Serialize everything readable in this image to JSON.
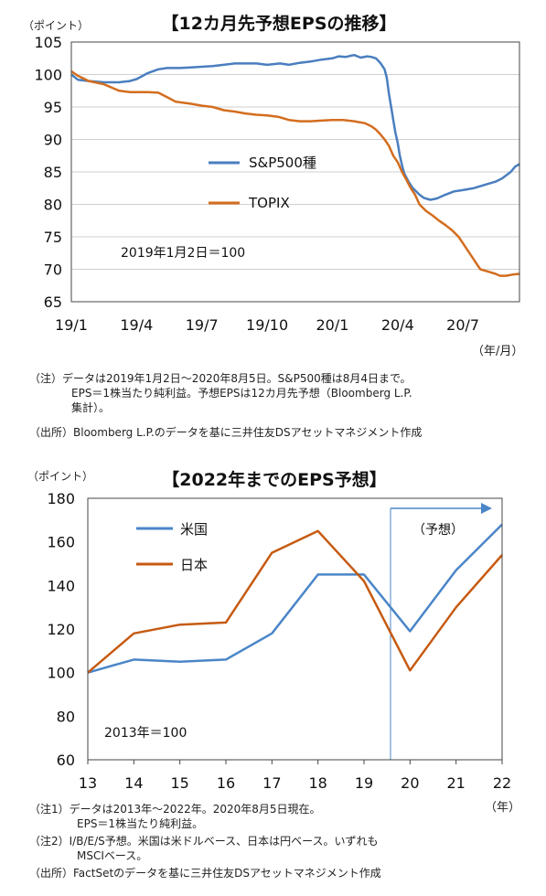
{
  "chart_data": [
    {
      "type": "line",
      "title": "【12カ月先予想EPSの推移】",
      "ylabel": "（ポイント）",
      "xlabel": "（年/月）",
      "ylim": [
        65,
        105
      ],
      "yticks": [
        "65",
        "70",
        "75",
        "80",
        "85",
        "90",
        "95",
        "100",
        "105"
      ],
      "xticks": [
        "19/1",
        "19/4",
        "19/7",
        "19/10",
        "20/1",
        "20/4",
        "20/7"
      ],
      "grid": true,
      "legend_position": "middle-right",
      "base_note": "2019年1月2日＝100",
      "series": [
        {
          "name": "S&P500種",
          "color": "#4a7ebf",
          "x": [
            0,
            0.3,
            0.8,
            1.5,
            2.2,
            2.7,
            3.0,
            3.5,
            4.0,
            4.4,
            5.0,
            5.5,
            6.0,
            6.5,
            7.0,
            7.5,
            8.0,
            8.5,
            9.0,
            9.3,
            9.6,
            10.0,
            10.5,
            11.0,
            11.5,
            12.0,
            12.3,
            12.6,
            13.0,
            13.3,
            13.6,
            13.8,
            14.0,
            14.2,
            14.4,
            14.5,
            14.6,
            14.7,
            14.8,
            14.9,
            15.0,
            15.1,
            15.2,
            15.3,
            15.5,
            15.7,
            16.0,
            16.2,
            16.5,
            16.8,
            17.2,
            17.6,
            18.0,
            18.5,
            19.0,
            19.5,
            19.8,
            20.0,
            20.2,
            20.4,
            20.6
          ],
          "values": [
            100.0,
            99.2,
            99.0,
            98.8,
            98.8,
            99.0,
            99.3,
            100.2,
            100.8,
            101.0,
            101.0,
            101.1,
            101.2,
            101.3,
            101.5,
            101.7,
            101.7,
            101.7,
            101.5,
            101.6,
            101.7,
            101.5,
            101.8,
            102.0,
            102.3,
            102.5,
            102.8,
            102.7,
            103.0,
            102.6,
            102.8,
            102.7,
            102.5,
            101.8,
            100.8,
            99.5,
            97.0,
            95.0,
            93.0,
            91.0,
            89.5,
            87.5,
            86.0,
            84.8,
            83.5,
            82.5,
            81.5,
            81.0,
            80.7,
            80.9,
            81.5,
            82.0,
            82.2,
            82.5,
            83.0,
            83.5,
            84.0,
            84.5,
            85.0,
            85.8,
            86.2
          ]
        },
        {
          "name": "TOPIX",
          "color": "#d36d1f",
          "x": [
            0,
            0.3,
            0.8,
            1.5,
            2.2,
            2.7,
            3.0,
            3.5,
            4.0,
            4.4,
            4.8,
            5.5,
            6.0,
            6.5,
            7.0,
            7.5,
            8.0,
            8.5,
            9.0,
            9.5,
            10.0,
            10.5,
            11.0,
            11.5,
            12.0,
            12.5,
            13.0,
            13.5,
            13.8,
            14.0,
            14.2,
            14.4,
            14.6,
            14.8,
            15.0,
            15.2,
            15.4,
            15.6,
            15.8,
            16.0,
            16.3,
            16.6,
            16.9,
            17.2,
            17.5,
            17.8,
            18.0,
            18.2,
            18.4,
            18.6,
            18.8,
            19.0,
            19.3,
            19.5,
            19.7,
            20.0,
            20.3,
            20.6
          ],
          "values": [
            100.5,
            99.8,
            99.0,
            98.5,
            97.5,
            97.3,
            97.3,
            97.3,
            97.2,
            96.5,
            95.8,
            95.5,
            95.2,
            95.0,
            94.5,
            94.3,
            94.0,
            93.8,
            93.7,
            93.5,
            93.0,
            92.8,
            92.8,
            92.9,
            93.0,
            93.0,
            92.8,
            92.5,
            92.0,
            91.5,
            90.8,
            90.0,
            89.0,
            87.5,
            86.5,
            85.0,
            83.8,
            82.5,
            81.5,
            80.0,
            79.0,
            78.3,
            77.5,
            76.8,
            76.0,
            75.0,
            74.0,
            73.0,
            72.0,
            71.0,
            70.0,
            69.8,
            69.5,
            69.3,
            69.0,
            69.0,
            69.2,
            69.3
          ]
        }
      ],
      "notes": [
        "（注）データは2019年1月2日～2020年8月5日。S&P500種は8月4日まで。",
        "EPS＝1株当たり純利益。予想EPSは12カ月先予想（Bloomberg L.P.",
        "集計）。",
        "（出所）Bloomberg L.P.のデータを基に三井住友DSアセットマネジメント作成"
      ]
    },
    {
      "type": "line",
      "title": "【2022年までのEPS予想】",
      "ylabel": "（ポイント）",
      "xlabel": "（年）",
      "ylim": [
        60,
        180
      ],
      "yticks": [
        "60",
        "80",
        "100",
        "120",
        "140",
        "160",
        "180"
      ],
      "categories": [
        "13",
        "14",
        "15",
        "16",
        "17",
        "18",
        "19",
        "20",
        "21",
        "22"
      ],
      "grid": false,
      "legend_position": "top-left",
      "base_note": "2013年＝100",
      "forecast_label": "（予想）",
      "forecast_from": 19.5,
      "series": [
        {
          "name": "米国",
          "color": "#4a86c8",
          "values": [
            100,
            106,
            105,
            106,
            118,
            145,
            145,
            119,
            147,
            168
          ]
        },
        {
          "name": "日本",
          "color": "#c65a11",
          "values": [
            100,
            118,
            122,
            123,
            155,
            165,
            142,
            101,
            130,
            154
          ]
        }
      ],
      "notes": [
        "（注1）データは2013年～2022年。2020年8月5日現在。",
        "EPS＝1株当たり純利益。",
        "（注2）I/B/E/S予想。米国は米ドルベース、日本は円ベース。いずれも",
        "MSCIベース。",
        "（出所）FactSetのデータを基に三井住友DSアセットマネジメント作成"
      ]
    }
  ]
}
